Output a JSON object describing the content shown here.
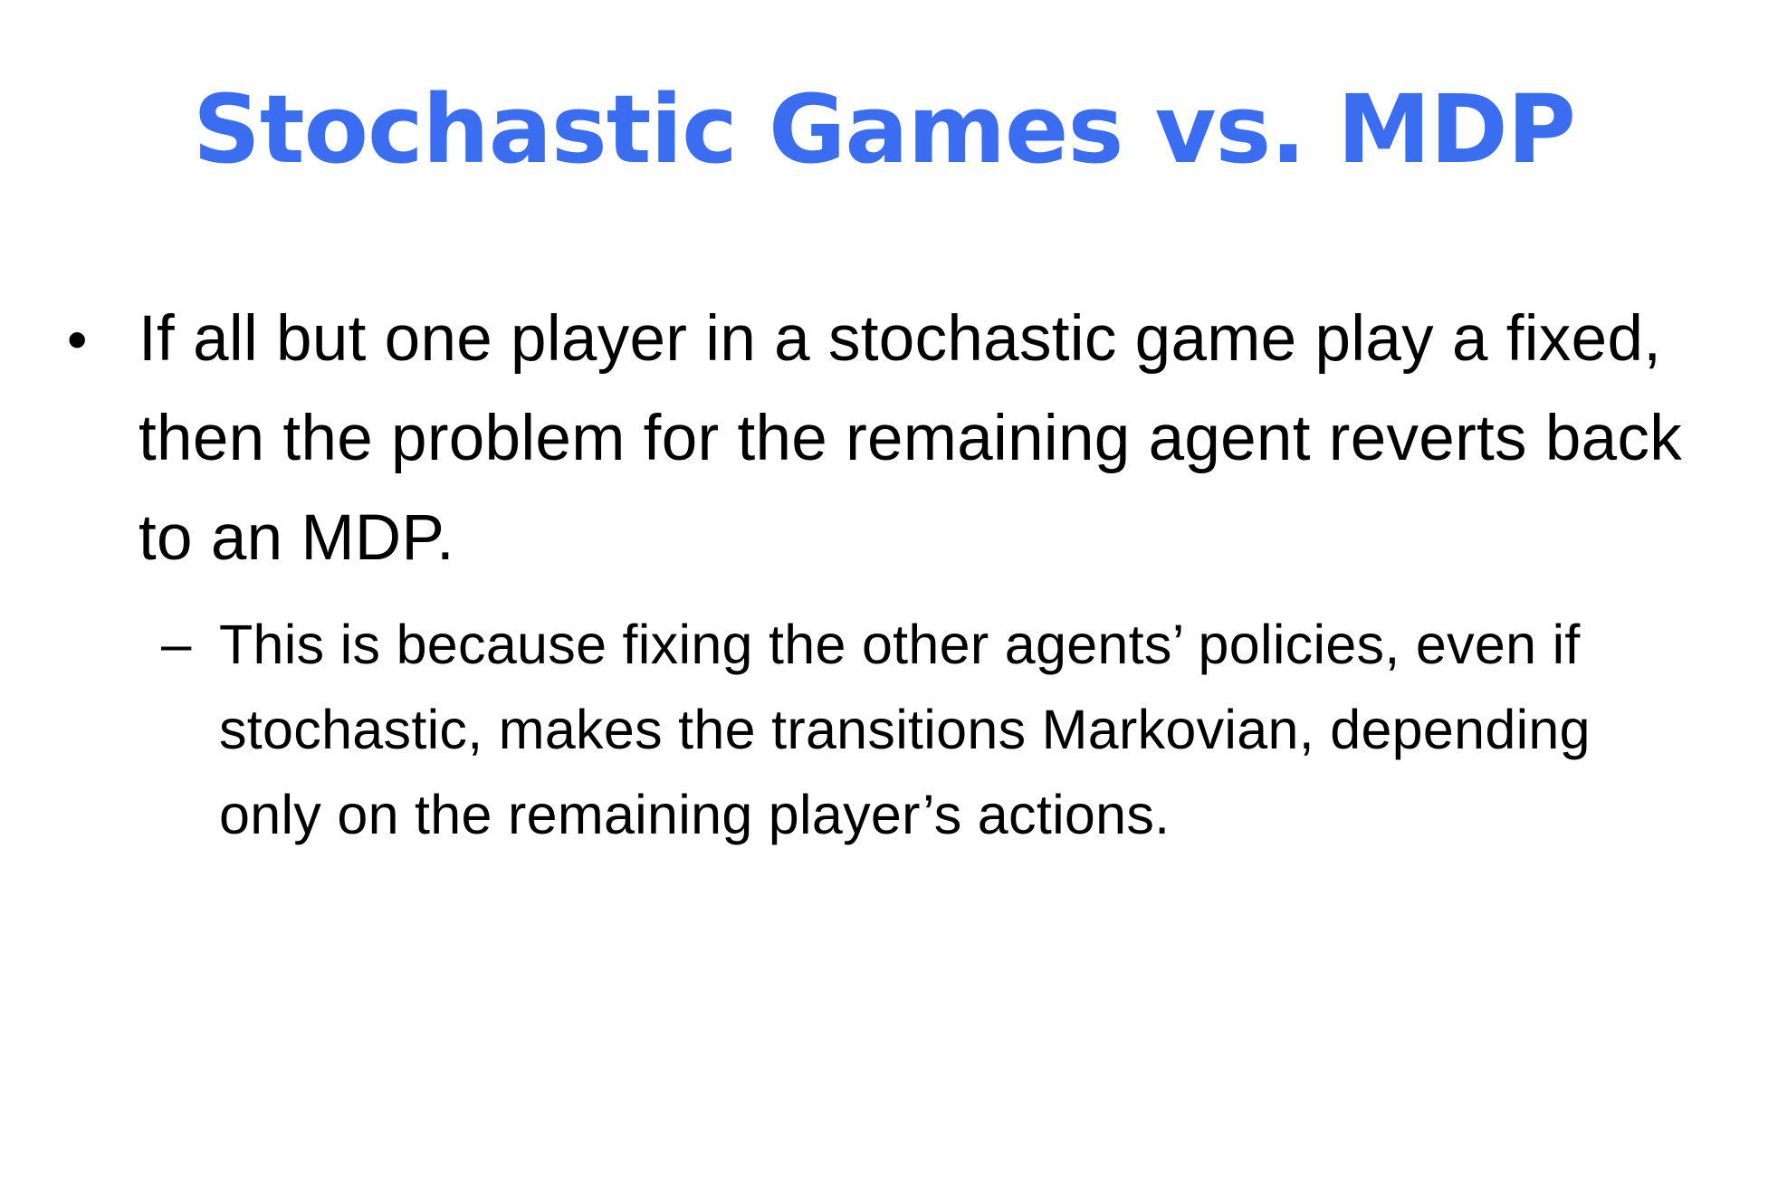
{
  "slide": {
    "title": "Stochastic Games vs. MDP",
    "bullets": [
      {
        "marker": "•",
        "text": "If all but one player in a stochastic game play a fixed, then the problem for the remaining agent reverts back to an MDP.",
        "sub": [
          {
            "marker": "–",
            "text": "This is because fixing the other agents’ policies, even if stochastic, makes the transitions Markovian, depending only on the remaining player’s actions."
          }
        ]
      }
    ]
  },
  "colors": {
    "title": "#3a6df0",
    "body_text": "#000000",
    "background": "#ffffff"
  }
}
